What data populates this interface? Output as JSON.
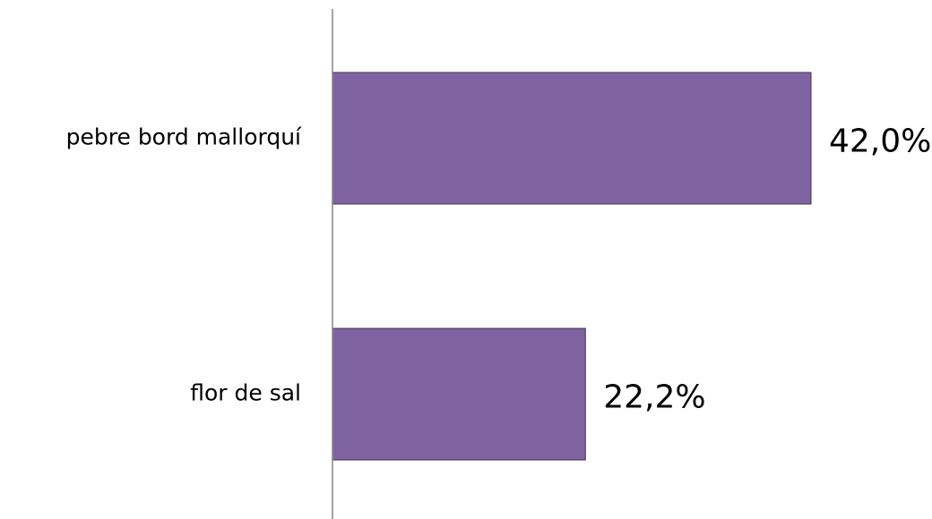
{
  "chart_data": {
    "type": "bar",
    "orientation": "horizontal",
    "categories": [
      "pebre bord mallorquí",
      "flor de sal"
    ],
    "values": [
      42.0,
      22.2
    ],
    "value_labels": [
      "42,0%",
      "22,2%"
    ],
    "color": "#8064a2"
  }
}
